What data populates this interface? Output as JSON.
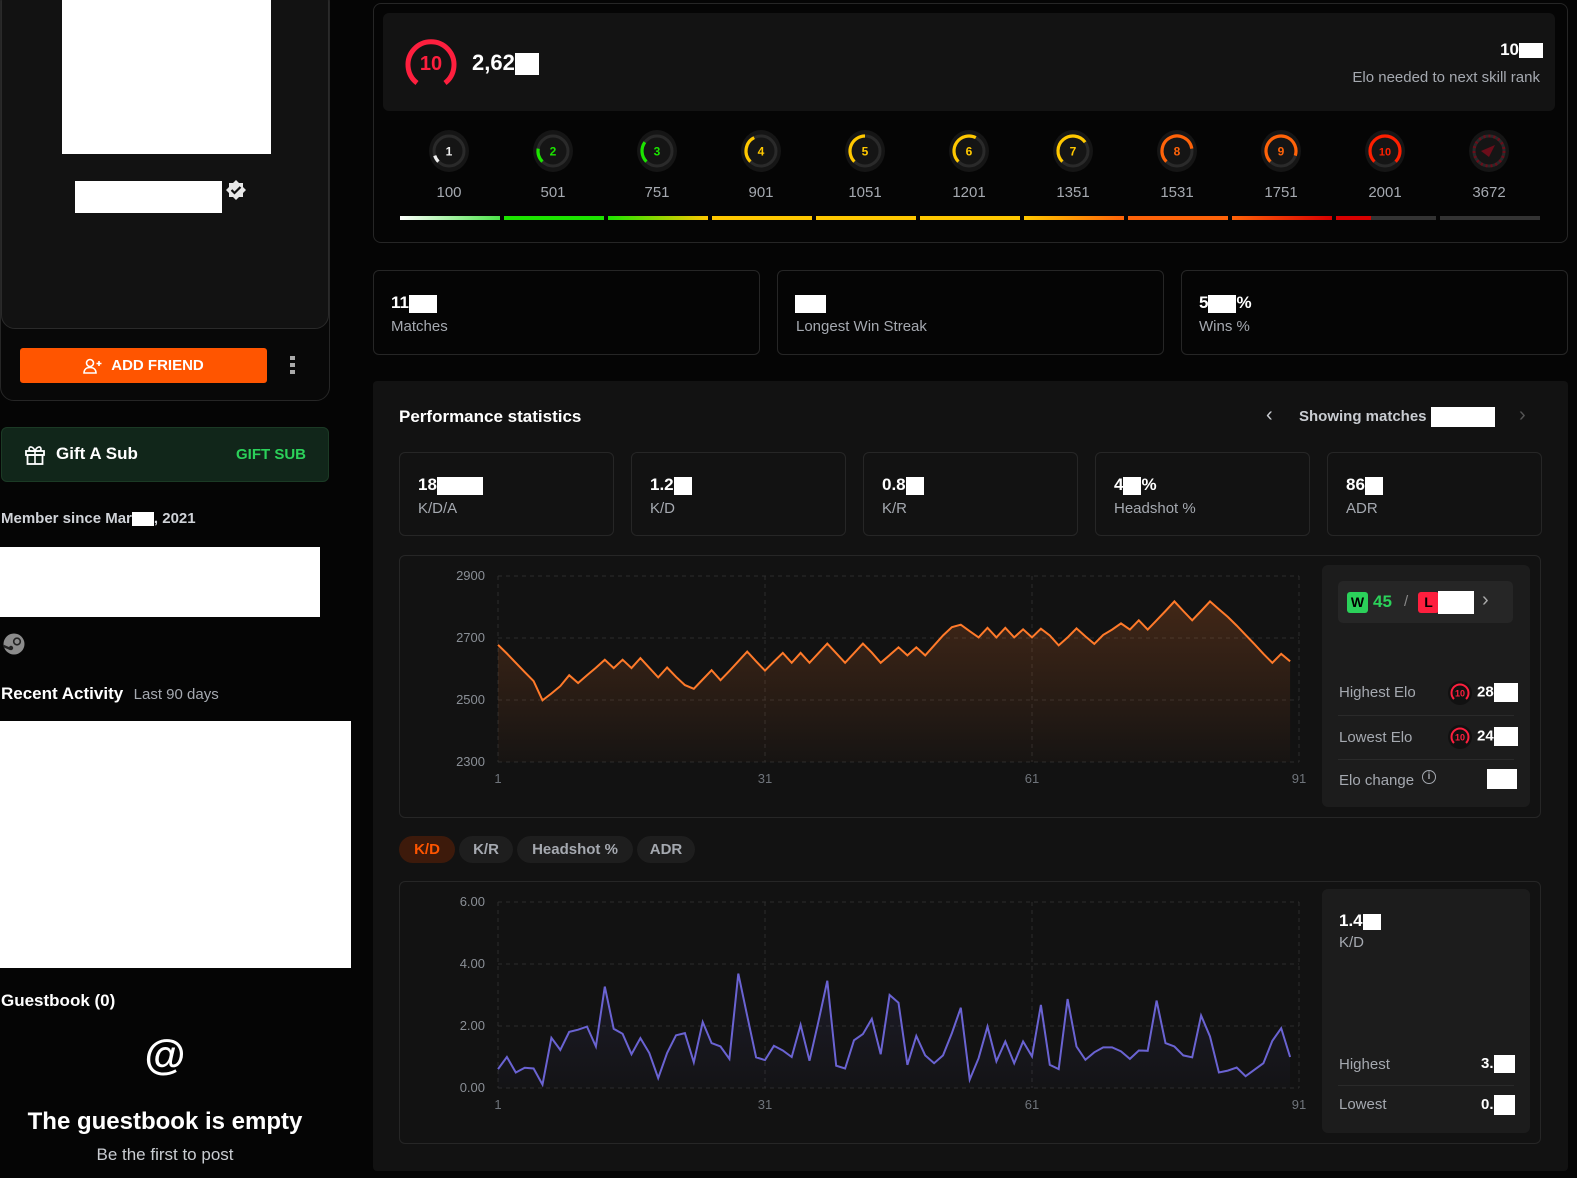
{
  "profile": {
    "verified_icon": "verified-badge-icon",
    "add_friend": "ADD FRIEND",
    "gift_title": "Gift A Sub",
    "gift_button": "GIFT SUB",
    "member_since_prefix": "Member since Mar",
    "member_since_suffix": ", 2021",
    "recent_activity": "Recent Activity",
    "recent_range": "Last 90 days",
    "guestbook_title": "Guestbook (0)",
    "guestbook_empty": "The guestbook is empty",
    "guestbook_cta": "Be the first to post"
  },
  "rank": {
    "level": "10",
    "elo_partial": "2,62",
    "next_partial": "10",
    "next_label": "Elo needed to next skill rank",
    "levels": [
      {
        "level": "1",
        "elo": "100",
        "color": "#eeeeee"
      },
      {
        "level": "2",
        "elo": "501",
        "color": "#1ce400"
      },
      {
        "level": "3",
        "elo": "751",
        "color": "#1ce400"
      },
      {
        "level": "4",
        "elo": "901",
        "color": "#ffc800"
      },
      {
        "level": "5",
        "elo": "1051",
        "color": "#ffc800"
      },
      {
        "level": "6",
        "elo": "1201",
        "color": "#ffc800"
      },
      {
        "level": "7",
        "elo": "1351",
        "color": "#ffc800"
      },
      {
        "level": "8",
        "elo": "1531",
        "color": "#ff6309"
      },
      {
        "level": "9",
        "elo": "1751",
        "color": "#ff6309"
      },
      {
        "level": "10",
        "elo": "2001",
        "color": "#fe1f00"
      },
      {
        "level": "",
        "elo": "3672",
        "color": "#6b0d1a"
      }
    ],
    "bar_colors": [
      [
        "#ffffff",
        "#4de34a"
      ],
      [
        "#1ce400",
        "#1ce400"
      ],
      [
        "#1ce400",
        "#ffc800"
      ],
      [
        "#ffc800",
        "#ffc800"
      ],
      [
        "#ffc800",
        "#ffc800"
      ],
      [
        "#ffc800",
        "#ffc800"
      ],
      [
        "#ffc800",
        "#ff6309"
      ],
      [
        "#ff6309",
        "#ff6309"
      ],
      [
        "#ff6309",
        "#d80000"
      ],
      [
        "#d80000",
        "#d80000"
      ],
      [
        "#333333",
        "#333333"
      ]
    ],
    "current_segment_fill": 0.35
  },
  "summary": [
    {
      "partial": "11",
      "label": "Matches"
    },
    {
      "partial": "",
      "label": "Longest Win Streak"
    },
    {
      "partial": "5",
      "suffix": "%",
      "label": "Wins %"
    }
  ],
  "performance": {
    "title": "Performance statistics",
    "showing": "Showing matches",
    "cards": [
      {
        "partial": "18",
        "suffix": "",
        "label": "K/D/A"
      },
      {
        "partial": "1.2",
        "suffix": "",
        "label": "K/D"
      },
      {
        "partial": "0.8",
        "suffix": "",
        "label": "K/R"
      },
      {
        "partial": "4",
        "suffix": "%",
        "label": "Headshot %"
      },
      {
        "partial": "86",
        "suffix": "",
        "label": "ADR"
      }
    ],
    "tabs": [
      "K/D",
      "K/R",
      "Headshot %",
      "ADR"
    ],
    "active_tab": 0,
    "elo_side": {
      "wins_badge": "W",
      "wins": "45",
      "sep": "/",
      "loss_badge": "L",
      "highest_label": "Highest Elo",
      "highest_partial": "28",
      "lowest_label": "Lowest Elo",
      "lowest_partial": "24",
      "change_label": "Elo change",
      "level": "10"
    },
    "kd_side": {
      "value_partial": "1.4",
      "label": "K/D",
      "highest_label": "Highest",
      "highest_partial": "3.",
      "lowest_label": "Lowest",
      "lowest_partial": "0."
    }
  },
  "chart_data": [
    {
      "type": "area",
      "name": "elo",
      "color": "#ff7a2a",
      "ylim": [
        2300,
        2900
      ],
      "yticks": [
        "2900",
        "2700",
        "2500",
        "2300"
      ],
      "xticks": [
        "1",
        "31",
        "61",
        "91"
      ],
      "xlim": [
        1,
        91
      ],
      "values": [
        2678,
        2650,
        2620,
        2590,
        2561,
        2499,
        2521,
        2545,
        2580,
        2555,
        2580,
        2604,
        2630,
        2603,
        2630,
        2603,
        2635,
        2604,
        2573,
        2605,
        2575,
        2548,
        2536,
        2566,
        2596,
        2564,
        2594,
        2625,
        2656,
        2625,
        2595,
        2624,
        2652,
        2620,
        2652,
        2620,
        2651,
        2682,
        2651,
        2620,
        2651,
        2682,
        2653,
        2620,
        2645,
        2670,
        2644,
        2670,
        2644,
        2676,
        2708,
        2735,
        2743,
        2722,
        2702,
        2733,
        2702,
        2733,
        2702,
        2728,
        2702,
        2730,
        2708,
        2676,
        2702,
        2731,
        2705,
        2681,
        2710,
        2727,
        2747,
        2727,
        2757,
        2727,
        2757,
        2787,
        2818,
        2787,
        2757,
        2787,
        2818,
        2793,
        2768,
        2740,
        2710,
        2680,
        2649,
        2620,
        2649,
        2625
      ]
    },
    {
      "type": "area",
      "name": "kd",
      "color": "#6a63d2",
      "ylim": [
        0,
        6
      ],
      "yticks": [
        "6.00",
        "4.00",
        "2.00",
        "0.00"
      ],
      "xticks": [
        "1",
        "31",
        "61",
        "91"
      ],
      "xlim": [
        1,
        91
      ],
      "values": [
        0.61,
        1.0,
        0.5,
        0.65,
        0.63,
        0.11,
        1.62,
        1.23,
        1.81,
        1.88,
        1.98,
        1.34,
        3.27,
        1.91,
        1.75,
        1.09,
        1.61,
        1.13,
        0.32,
        1.13,
        1.7,
        1.77,
        0.83,
        2.13,
        1.45,
        1.34,
        0.94,
        3.69,
        2.33,
        0.99,
        0.9,
        1.36,
        1.21,
        1.0,
        2.04,
        0.88,
        2.14,
        3.46,
        0.72,
        0.63,
        1.54,
        1.74,
        2.23,
        1.09,
        3.0,
        2.75,
        0.75,
        1.68,
        1.05,
        0.8,
        1.05,
        1.77,
        2.59,
        0.27,
        0.96,
        1.98,
        0.86,
        1.5,
        0.8,
        1.5,
        1.02,
        2.68,
        0.75,
        0.61,
        2.87,
        1.34,
        0.91,
        1.15,
        1.31,
        1.31,
        1.18,
        0.94,
        1.21,
        1.2,
        2.82,
        1.45,
        1.34,
        1.05,
        0.99,
        2.34,
        1.66,
        0.5,
        0.56,
        0.66,
        0.38,
        0.59,
        0.8,
        1.52,
        1.93,
        1.0
      ]
    }
  ]
}
